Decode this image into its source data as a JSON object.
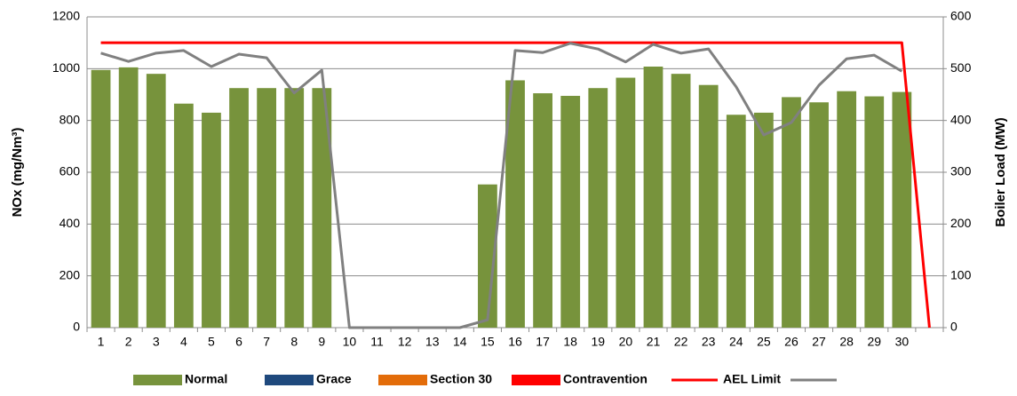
{
  "chart_data": {
    "type": "bar",
    "categories": [
      "1",
      "2",
      "3",
      "4",
      "5",
      "6",
      "7",
      "8",
      "9",
      "10",
      "11",
      "12",
      "13",
      "14",
      "15",
      "16",
      "17",
      "18",
      "19",
      "20",
      "21",
      "22",
      "23",
      "24",
      "25",
      "26",
      "27",
      "28",
      "29",
      "30",
      null
    ],
    "y_label": "NOx (mg/Nm³)",
    "y2_label": "Boiler Load (MW)",
    "ylim": [
      0,
      1200
    ],
    "yticks": [
      0,
      200,
      400,
      600,
      800,
      1000,
      1200
    ],
    "y2lim": [
      0,
      600
    ],
    "y2ticks": [
      0,
      100,
      200,
      300,
      400,
      500,
      600
    ],
    "grid": true,
    "legend": "bottom",
    "series": [
      {
        "name": "Normal",
        "type": "bar",
        "color": "#77933c",
        "values": [
          995,
          1005,
          980,
          865,
          830,
          925,
          925,
          925,
          925,
          0,
          0,
          0,
          0,
          0,
          553,
          955,
          905,
          895,
          925,
          965,
          1008,
          980,
          937,
          822,
          830,
          890,
          870,
          913,
          893,
          910,
          null
        ]
      },
      {
        "name": "Grace",
        "type": "bar",
        "color": "#1f497d",
        "values": [
          null,
          null,
          null,
          null,
          null,
          null,
          null,
          null,
          null,
          null,
          null,
          null,
          null,
          null,
          null,
          null,
          null,
          null,
          null,
          null,
          null,
          null,
          null,
          null,
          null,
          null,
          null,
          null,
          null,
          null,
          null
        ]
      },
      {
        "name": "Section 30",
        "type": "bar",
        "color": "#e36c09",
        "values": [
          null,
          null,
          null,
          null,
          null,
          null,
          null,
          null,
          null,
          null,
          null,
          null,
          null,
          null,
          null,
          null,
          null,
          null,
          null,
          null,
          null,
          null,
          null,
          null,
          null,
          null,
          null,
          null,
          null,
          null,
          null
        ]
      },
      {
        "name": "Contravention",
        "type": "bar",
        "color": "#ff0000",
        "values": [
          null,
          null,
          null,
          null,
          null,
          null,
          null,
          null,
          null,
          null,
          null,
          null,
          null,
          null,
          null,
          null,
          null,
          null,
          null,
          null,
          null,
          null,
          null,
          null,
          null,
          null,
          null,
          null,
          null,
          null,
          null
        ]
      },
      {
        "name": "AEL Limit",
        "type": "line",
        "color": "#ff0000",
        "values": [
          1100,
          1100,
          1100,
          1100,
          1100,
          1100,
          1100,
          1100,
          1100,
          1100,
          1100,
          1100,
          1100,
          1100,
          1100,
          1100,
          1100,
          1100,
          1100,
          1100,
          1100,
          1100,
          1100,
          1100,
          1100,
          1100,
          1100,
          1100,
          1100,
          1100,
          0
        ]
      },
      {
        "type": "line",
        "axis": "y2",
        "color": "#808080",
        "values": [
          530,
          514,
          530,
          535,
          504,
          528,
          521,
          453,
          497,
          0,
          0,
          0,
          0,
          0,
          15,
          535,
          531,
          549,
          538,
          513,
          547,
          530,
          538,
          465,
          372,
          396,
          468,
          519,
          526,
          495,
          null
        ]
      }
    ]
  }
}
